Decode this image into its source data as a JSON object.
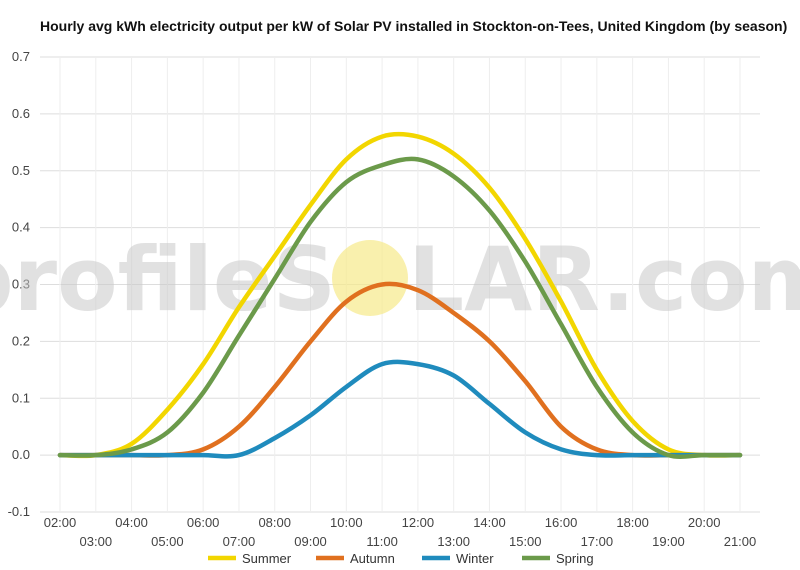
{
  "chart_data": {
    "type": "line",
    "title": "Hourly avg kWh electricity output per kW of Solar PV installed in Stockton-on-Tees, United Kingdom (by season)",
    "xlabel": "",
    "ylabel": "",
    "ylim": [
      -0.1,
      0.7
    ],
    "xlim": [
      2,
      21
    ],
    "grid": true,
    "legend_position": "bottom",
    "y_ticks": [
      "-0.1",
      "0.0",
      "0.1",
      "0.2",
      "0.3",
      "0.4",
      "0.5",
      "0.6",
      "0.7"
    ],
    "x_ticks_upper": [
      "02:00",
      "04:00",
      "06:00",
      "08:00",
      "10:00",
      "12:00",
      "14:00",
      "16:00",
      "18:00",
      "20:00"
    ],
    "x_ticks_lower": [
      "03:00",
      "05:00",
      "07:00",
      "09:00",
      "11:00",
      "13:00",
      "15:00",
      "17:00",
      "19:00",
      "21:00"
    ],
    "x": [
      2,
      3,
      4,
      5,
      6,
      7,
      8,
      9,
      10,
      11,
      12,
      13,
      14,
      15,
      16,
      17,
      18,
      19,
      20,
      21
    ],
    "series": [
      {
        "name": "Summer",
        "color": "#f2d600",
        "values": [
          0.0,
          0.0,
          0.02,
          0.08,
          0.16,
          0.26,
          0.35,
          0.44,
          0.52,
          0.56,
          0.56,
          0.53,
          0.47,
          0.38,
          0.27,
          0.15,
          0.06,
          0.01,
          0.0,
          0.0
        ]
      },
      {
        "name": "Autumn",
        "color": "#e0701f",
        "values": [
          0.0,
          0.0,
          0.0,
          0.0,
          0.01,
          0.05,
          0.12,
          0.2,
          0.27,
          0.3,
          0.29,
          0.25,
          0.2,
          0.13,
          0.05,
          0.01,
          0.0,
          0.0,
          0.0,
          0.0
        ]
      },
      {
        "name": "Winter",
        "color": "#1f8bbd",
        "values": [
          0.0,
          0.0,
          0.0,
          0.0,
          0.0,
          0.0,
          0.03,
          0.07,
          0.12,
          0.16,
          0.16,
          0.14,
          0.09,
          0.04,
          0.01,
          0.0,
          0.0,
          0.0,
          0.0,
          0.0
        ]
      },
      {
        "name": "Spring",
        "color": "#6b9a4a",
        "values": [
          0.0,
          0.0,
          0.01,
          0.04,
          0.11,
          0.21,
          0.31,
          0.41,
          0.48,
          0.51,
          0.52,
          0.49,
          0.43,
          0.34,
          0.23,
          0.12,
          0.04,
          0.0,
          0.0,
          0.0
        ]
      }
    ]
  },
  "watermark": {
    "text_left": "profileS",
    "text_right": "LAR.com",
    "sun_color": "#f6e98a"
  }
}
